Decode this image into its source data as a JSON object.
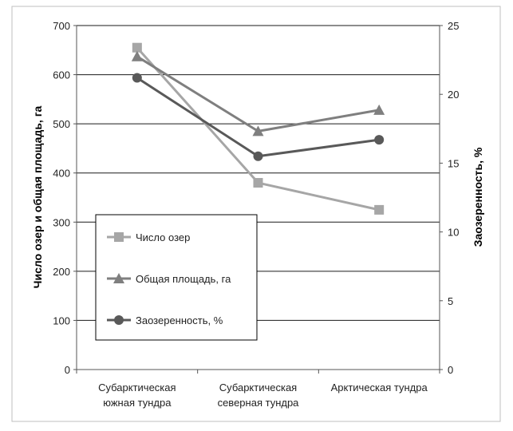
{
  "chart_data": {
    "type": "line",
    "categories": [
      [
        "Субарктическая",
        "южная тундра"
      ],
      [
        "Субарктическая",
        "северная тундра"
      ],
      [
        "Арктическая тундра"
      ]
    ],
    "ylabel_left": "Число озер и общая площадь, га",
    "ylabel_right": "Заозеренность, %",
    "ylim_left": [
      0,
      700
    ],
    "yticks_left": [
      0,
      100,
      200,
      300,
      400,
      500,
      600,
      700
    ],
    "ylim_right": [
      0,
      25
    ],
    "yticks_right": [
      0,
      5,
      10,
      15,
      20,
      25
    ],
    "grid": true,
    "legend_position": "left",
    "series": [
      {
        "name": "Число озер",
        "axis": "left",
        "marker": "square",
        "color": "#a6a6a6",
        "values": [
          655,
          380,
          325
        ]
      },
      {
        "name": "Общая площадь, га",
        "axis": "left",
        "marker": "triangle",
        "color": "#7f7f7f",
        "values": [
          637,
          485,
          528
        ]
      },
      {
        "name": "Заозеренность, %",
        "axis": "right",
        "marker": "circle",
        "color": "#595959",
        "values": [
          21.2,
          15.5,
          16.7
        ]
      }
    ]
  }
}
